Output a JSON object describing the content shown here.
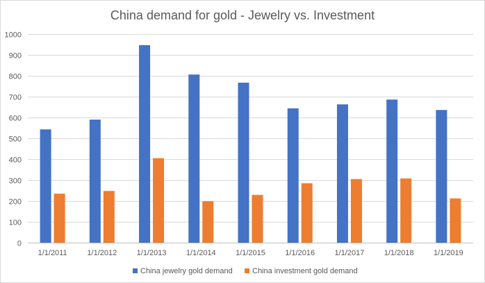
{
  "chart_data": {
    "type": "bar",
    "title": "China demand for gold - Jewelry vs. Investment",
    "xlabel": "",
    "ylabel": "",
    "categories": [
      "1/1/2011",
      "1/1/2012",
      "1/1/2013",
      "1/1/2014",
      "1/1/2015",
      "1/1/2016",
      "1/1/2017",
      "1/1/2018",
      "1/1/2019"
    ],
    "series": [
      {
        "name": "China jewelry gold demand",
        "color": "#4472c4",
        "values": [
          543,
          590,
          947,
          806,
          767,
          644,
          663,
          686,
          636
        ]
      },
      {
        "name": "China investment gold demand",
        "color": "#ed7d31",
        "values": [
          235,
          248,
          405,
          199,
          229,
          285,
          305,
          308,
          212
        ]
      }
    ],
    "ylim": [
      0,
      1000
    ],
    "yticks": [
      "0",
      "100",
      "200",
      "300",
      "400",
      "500",
      "600",
      "700",
      "800",
      "900",
      "1000"
    ],
    "grid": true,
    "legend_position": "bottom"
  }
}
